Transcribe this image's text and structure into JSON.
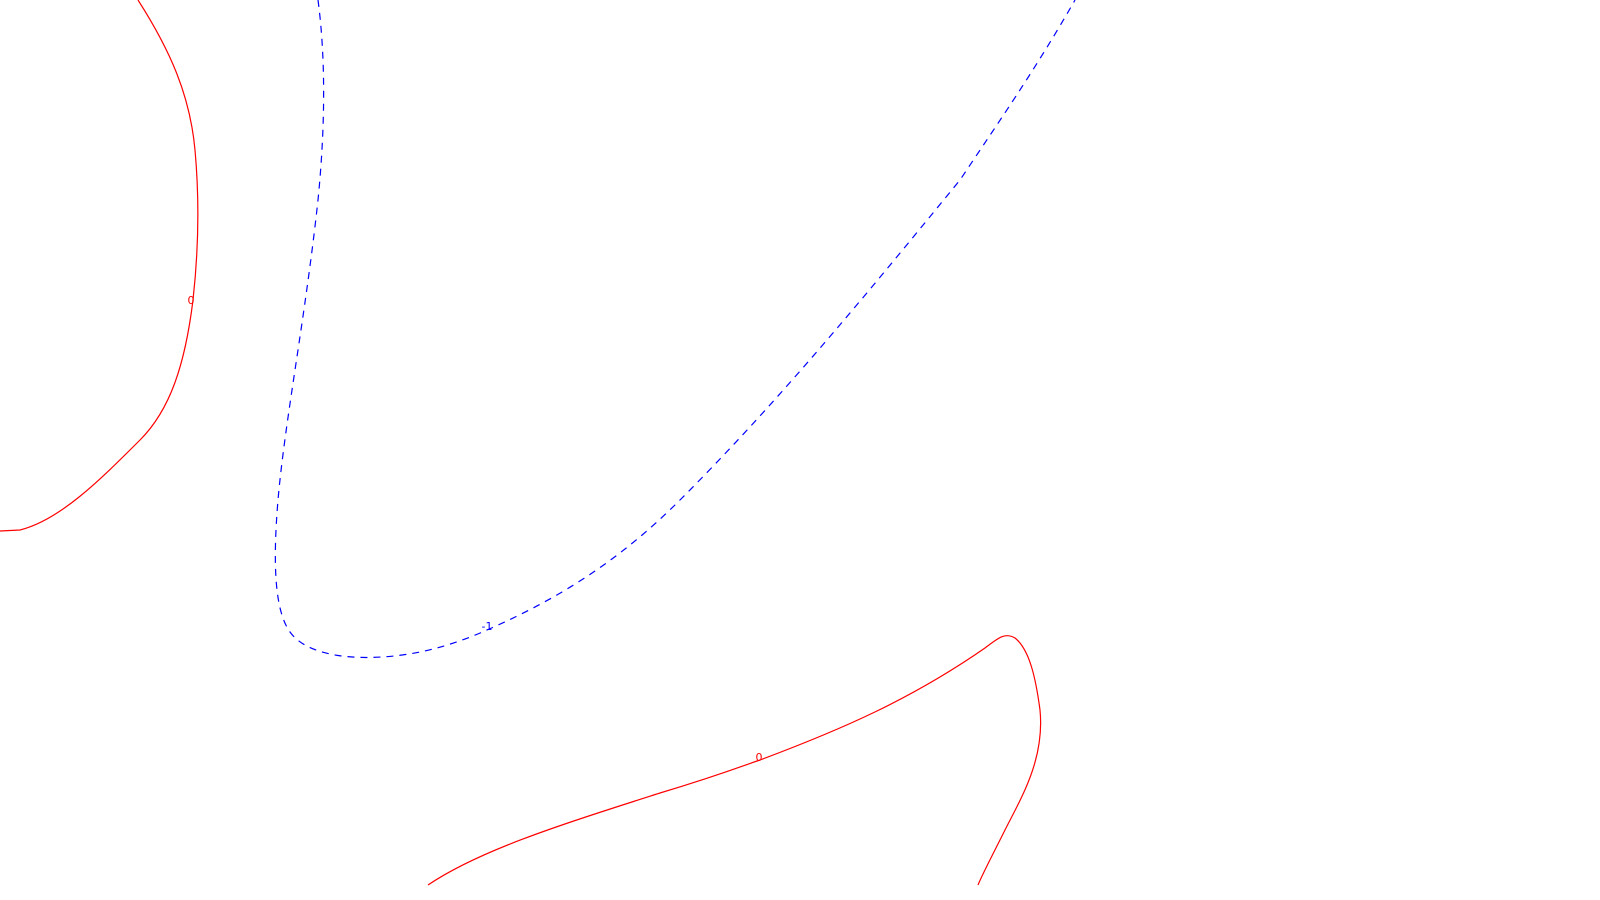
{
  "contours": [
    {
      "name": "contour-upper-left",
      "value": "0",
      "color": "#ff0000",
      "style": "solid"
    },
    {
      "name": "contour-central",
      "value": "-1",
      "color": "#0000ff",
      "style": "dashed"
    },
    {
      "name": "contour-lower-right",
      "value": "0",
      "color": "#ff0000",
      "style": "solid"
    }
  ],
  "colors": {
    "background": "#ffffff",
    "positive": "#ff0000",
    "negative": "#0000ff"
  }
}
